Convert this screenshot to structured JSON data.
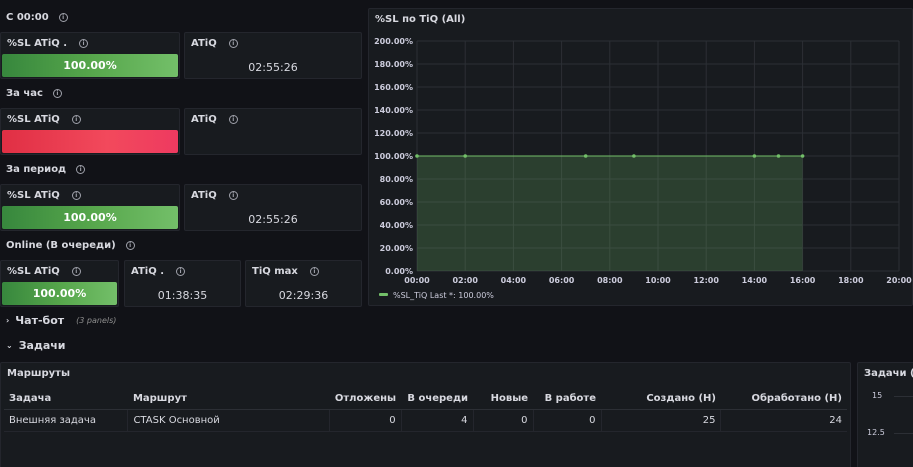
{
  "rows": {
    "since_midnight": "С 00:00",
    "per_hour": "За час",
    "per_period": "За период",
    "online": "Online (В очереди)"
  },
  "stats": {
    "r1_sl": {
      "title": "%SL ATiQ .",
      "value": "100.00%",
      "level": 1.0
    },
    "r1_atiq": {
      "title": "ATiQ",
      "value": "02:55:26"
    },
    "r2_sl": {
      "title": "%SL ATiQ",
      "value": ""
    },
    "r2_atiq": {
      "title": "ATiQ",
      "value": ""
    },
    "r3_sl": {
      "title": "%SL ATiQ",
      "value": "100.00%",
      "level": 1.0
    },
    "r3_atiq": {
      "title": "ATiQ",
      "value": "02:55:26"
    },
    "r4_sl": {
      "title": "%SL ATiQ",
      "value": "100.00%",
      "level": 1.0
    },
    "r4_atiq": {
      "title": "ATiQ .",
      "value": "01:38:35"
    },
    "r4_tiqmax": {
      "title": "TiQ max",
      "value": "02:29:36"
    }
  },
  "chart_panel": {
    "title": "%SL по TiQ (All)"
  },
  "chart_data": {
    "type": "area",
    "title": "%SL по TiQ (All)",
    "x_ticks": [
      "00:00",
      "02:00",
      "04:00",
      "06:00",
      "08:00",
      "10:00",
      "12:00",
      "14:00",
      "16:00",
      "18:00",
      "20:00"
    ],
    "y_ticks": [
      "0.00%",
      "20.00%",
      "40.00%",
      "60.00%",
      "80.00%",
      "100.00%",
      "120.00%",
      "140.00%",
      "160.00%",
      "180.00%",
      "200.00%"
    ],
    "ylim": [
      0,
      200
    ],
    "xlim_hours": [
      0,
      20
    ],
    "series": [
      {
        "name": "%SL_TiQ",
        "x_hours": [
          0,
          2,
          7,
          9,
          14,
          15,
          16
        ],
        "values": [
          100,
          100,
          100,
          100,
          100,
          100,
          100
        ],
        "color": "#73bf69"
      }
    ],
    "fill_range_hours": [
      0,
      16
    ],
    "legend_text": "%SL_TiQ  Last *: 100.00%",
    "legend": "bottom-left",
    "grid": true
  },
  "collapsed_row": {
    "title": "Чат-бот",
    "sub": "(3 panels)"
  },
  "tasks_row": {
    "title": "Задачи"
  },
  "routes": {
    "title": "Маршруты",
    "columns": [
      "Задача",
      "Маршрут",
      "Отложены",
      "В очереди",
      "Новые",
      "В работе",
      "Создано (Н)",
      "Обработано (Н)"
    ],
    "rows": [
      [
        "Внешняя задача",
        "CTASK Основной",
        "0",
        "4",
        "0",
        "0",
        "25",
        "24"
      ]
    ]
  },
  "tasks_panel": {
    "title": "Задачи (All)",
    "y_ticks": [
      "15",
      "12.5"
    ]
  },
  "colors": {
    "green": "#73bf69",
    "red": "#f2495c",
    "bg": "#111217",
    "panel": "#181b1f"
  }
}
